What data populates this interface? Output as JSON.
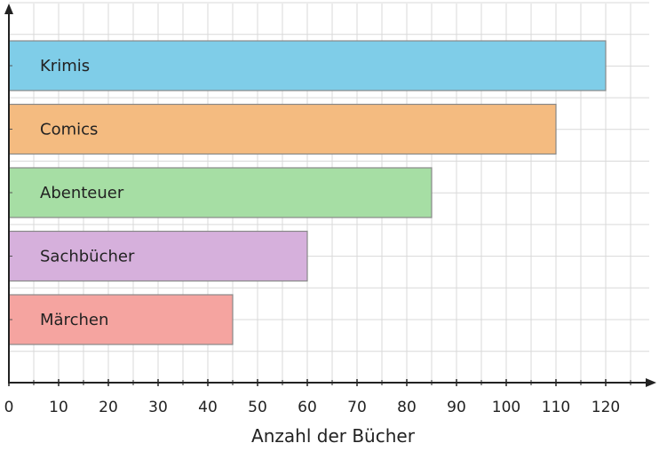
{
  "chart_data": {
    "type": "bar",
    "orientation": "horizontal",
    "title": "",
    "xlabel": "Anzahl der Bücher",
    "ylabel": "",
    "xlim": [
      0,
      130
    ],
    "xticks": [
      0,
      10,
      20,
      30,
      40,
      50,
      60,
      70,
      80,
      90,
      100,
      110,
      120
    ],
    "grid": true,
    "categories": [
      "Krimis",
      "Comics",
      "Abenteuer",
      "Sachbücher",
      "Märchen"
    ],
    "values": [
      120,
      110,
      85,
      60,
      45
    ],
    "colors": [
      "#7fcde8",
      "#f4bb80",
      "#a6dea4",
      "#d6b0dc",
      "#f5a4a0"
    ],
    "bar_edge_color": "#888888",
    "labels_inside_bars": true
  }
}
